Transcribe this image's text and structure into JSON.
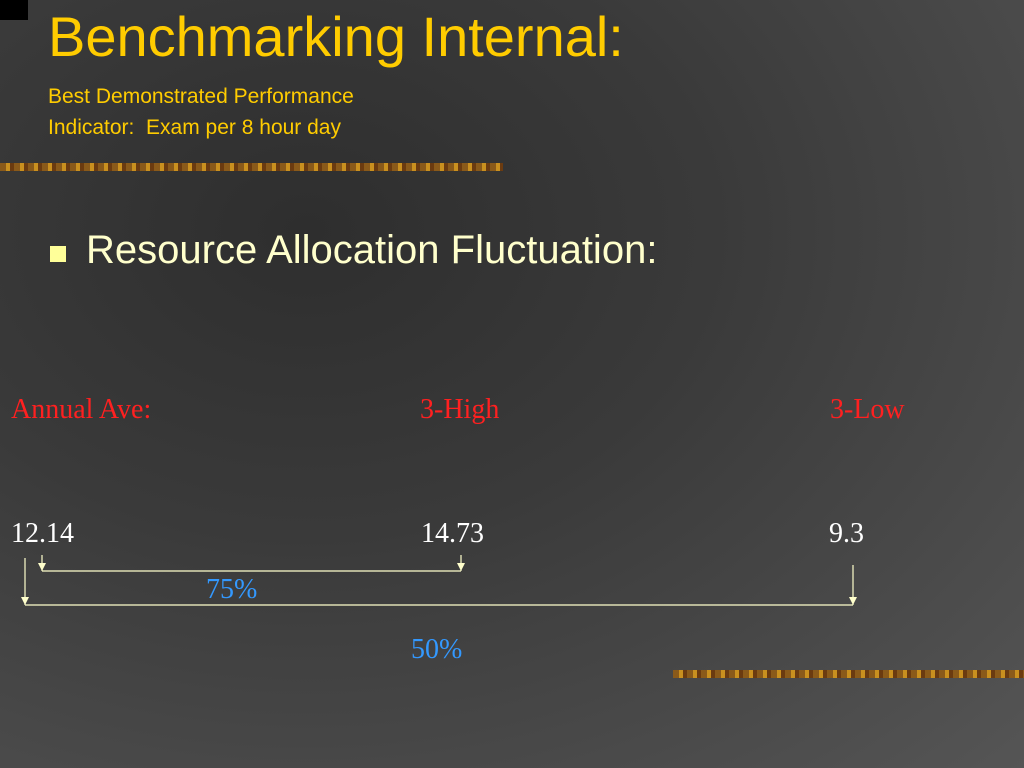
{
  "header": {
    "title": "Benchmarking Internal:",
    "subtitle_lines": [
      "Best Demonstrated Performance",
      "Indicator:  Exam per 8 hour day"
    ]
  },
  "bullet": "Resource Allocation Fluctuation:",
  "labels": [
    "Annual Ave:",
    "3-High",
    "3-Low"
  ],
  "values": [
    "12.14",
    "14.73",
    "9.3"
  ],
  "percentages": [
    "75%",
    "50%"
  ]
}
